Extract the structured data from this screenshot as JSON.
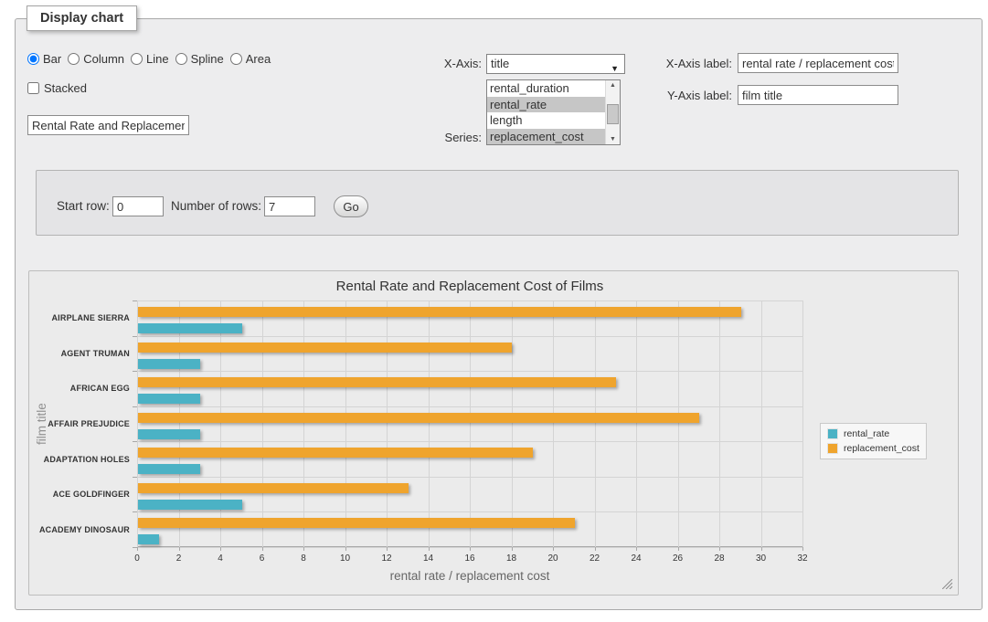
{
  "panel": {
    "legend": "Display chart"
  },
  "chart_type": {
    "options": [
      "Bar",
      "Column",
      "Line",
      "Spline",
      "Area"
    ],
    "selected": "Bar"
  },
  "stacked": {
    "label": "Stacked",
    "checked": false
  },
  "chart_title_input": {
    "value": "Rental Rate and Replacement Cost of Films"
  },
  "x_axis_select": {
    "label": "X-Axis:",
    "value": "title"
  },
  "series_select": {
    "label": "Series:",
    "options": [
      "rental_duration",
      "rental_rate",
      "length",
      "replacement_cost"
    ],
    "selected": [
      "rental_rate",
      "replacement_cost"
    ]
  },
  "x_axis_label_field": {
    "label": "X-Axis label:",
    "value": "rental rate / replacement cost"
  },
  "y_axis_label_field": {
    "label": "Y-Axis label:",
    "value": "film title"
  },
  "query": {
    "start_row_label": "Start row:",
    "start_row_value": "0",
    "rows_label": "Number of rows:",
    "rows_value": "7",
    "go_label": "Go"
  },
  "chart_data": {
    "type": "bar",
    "title": "Rental Rate and Replacement Cost of Films",
    "categories": [
      "AIRPLANE SIERRA",
      "AGENT TRUMAN",
      "AFRICAN EGG",
      "AFFAIR PREJUDICE",
      "ADAPTATION HOLES",
      "ACE GOLDFINGER",
      "ACADEMY DINOSAUR"
    ],
    "series": [
      {
        "name": "rental_rate",
        "color": "#4BB2C5",
        "values": [
          4.99,
          2.99,
          2.99,
          2.99,
          2.99,
          4.99,
          0.99
        ]
      },
      {
        "name": "replacement_cost",
        "color": "#EFA42D",
        "values": [
          28.99,
          17.99,
          22.99,
          26.99,
          18.99,
          12.99,
          20.99
        ]
      }
    ],
    "xlabel": "rental rate / replacement cost",
    "ylabel": "film title",
    "xlim": [
      0,
      32
    ],
    "x_tick_step": 2,
    "grid": true,
    "legend_position": "right",
    "bar_order_in_group": [
      "replacement_cost",
      "rental_rate"
    ]
  },
  "colors": {
    "teal": "#4BB2C5",
    "orange": "#EFA42D"
  }
}
